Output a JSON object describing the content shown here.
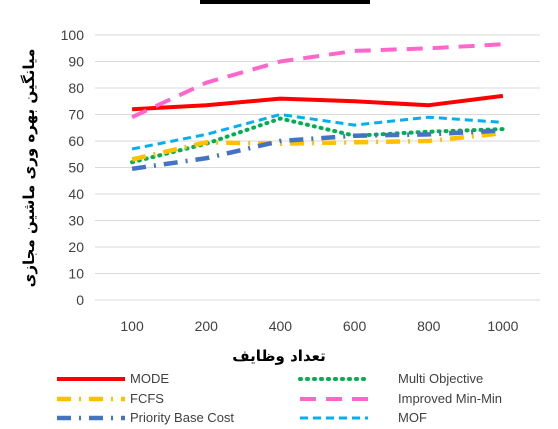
{
  "chart_data": {
    "type": "line",
    "title": "",
    "xlabel": "تعداد وظایف",
    "ylabel": "میانگین بهره وری ماشین مجازی",
    "categories": [
      "100",
      "200",
      "400",
      "600",
      "800",
      "1000"
    ],
    "ylim": [
      0,
      100
    ],
    "yticks": [
      0,
      10,
      20,
      30,
      40,
      50,
      60,
      70,
      80,
      90,
      100
    ],
    "grid": true,
    "legend_position": "bottom",
    "series": [
      {
        "name": "MODE",
        "values": [
          72,
          73.5,
          76,
          75,
          73.5,
          77
        ],
        "color": "#ff0000",
        "style": "solid"
      },
      {
        "name": "Multi Objective",
        "values": [
          52,
          59,
          68.5,
          62,
          63.5,
          64.5
        ],
        "color": "#00b050",
        "style": "dot"
      },
      {
        "name": "FCFS",
        "values": [
          53,
          59.5,
          59,
          59.5,
          60,
          63
        ],
        "color": "#ffc000",
        "style": "longdashdot"
      },
      {
        "name": "Improved Min-Min",
        "values": [
          69,
          82,
          90,
          94,
          95,
          96.5
        ],
        "color": "#ff66cc",
        "style": "longdash"
      },
      {
        "name": "Priority Base Cost",
        "values": [
          49.5,
          53.5,
          60,
          62,
          62.5,
          64
        ],
        "color": "#4472c4",
        "style": "longdashdot"
      },
      {
        "name": "MOF",
        "values": [
          57,
          62.5,
          70,
          66,
          69,
          67
        ],
        "color": "#00b0f0",
        "style": "dash"
      }
    ]
  }
}
